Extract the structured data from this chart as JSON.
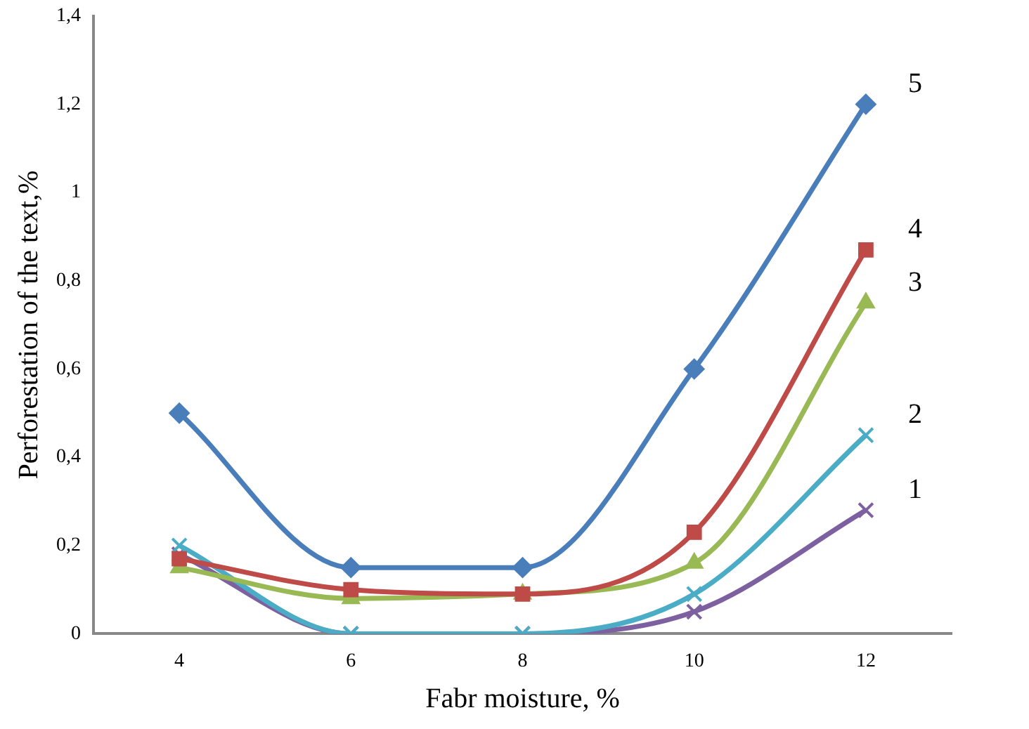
{
  "chart_data": {
    "type": "line",
    "xlabel": "Fabr moisture, %",
    "ylabel": "Perforestation of the text,%",
    "categories": [
      "4",
      "6",
      "8",
      "10",
      "12"
    ],
    "ylim": [
      0,
      1.4
    ],
    "yticks": [
      {
        "value": 0,
        "label": "0"
      },
      {
        "value": 0.2,
        "label": "0,2"
      },
      {
        "value": 0.4,
        "label": "0,4"
      },
      {
        "value": 0.6,
        "label": "0,6"
      },
      {
        "value": 0.8,
        "label": "0,8"
      },
      {
        "value": 1,
        "label": "1"
      },
      {
        "value": 1.2,
        "label": "1,2"
      },
      {
        "value": 1.4,
        "label": "1,4"
      }
    ],
    "grid": false,
    "legend": false,
    "line_style": "solid",
    "series": [
      {
        "name": "5",
        "color": "#4a7ebb",
        "marker": "diamond",
        "values": [
          0.5,
          0.15,
          0.15,
          0.6,
          1.2
        ]
      },
      {
        "name": "4",
        "color": "#be4b48",
        "marker": "square",
        "values": [
          0.17,
          0.1,
          0.09,
          0.23,
          0.87
        ]
      },
      {
        "name": "3",
        "color": "#98b954",
        "marker": "triangle",
        "values": [
          0.15,
          0.08,
          0.09,
          0.16,
          0.75
        ]
      },
      {
        "name": "2",
        "color": "#4bacc6",
        "marker": "cross",
        "values": [
          0.2,
          0,
          0,
          0.09,
          0.45
        ]
      },
      {
        "name": "1",
        "color": "#7d60a0",
        "marker": "cross",
        "values": [
          0.18,
          0,
          0,
          0.05,
          0.28
        ]
      }
    ]
  }
}
